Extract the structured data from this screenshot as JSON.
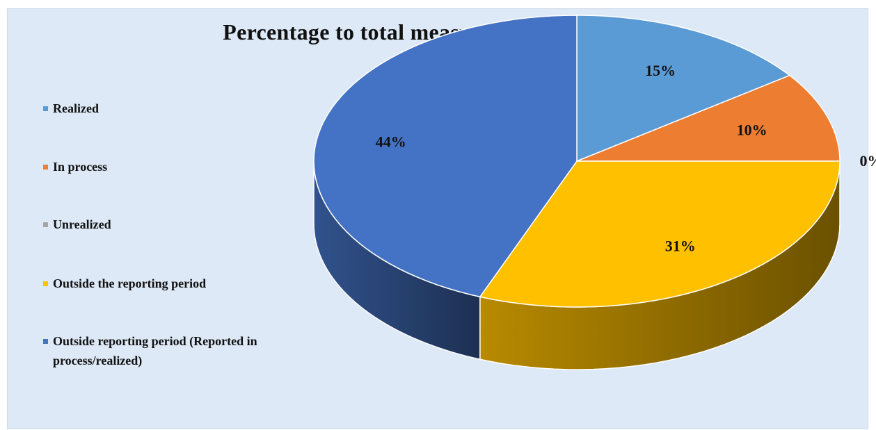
{
  "chart_data": {
    "type": "pie",
    "title": "Percentage to total measures for approach A",
    "categories": [
      "Realized",
      "In process",
      "Unrealized",
      "Outside the reporting period",
      "Outside reporting period (Reported in process/realized)"
    ],
    "values": [
      15,
      10,
      0,
      31,
      44
    ],
    "value_labels": [
      "15%",
      "10%",
      "0%",
      "31%",
      "44%"
    ],
    "colors": [
      "#5b9bd5",
      "#ed7d31",
      "#a5a5a5",
      "#ffc000",
      "#4472c4"
    ],
    "legend_position": "left",
    "style": "3d-exploded-none"
  }
}
